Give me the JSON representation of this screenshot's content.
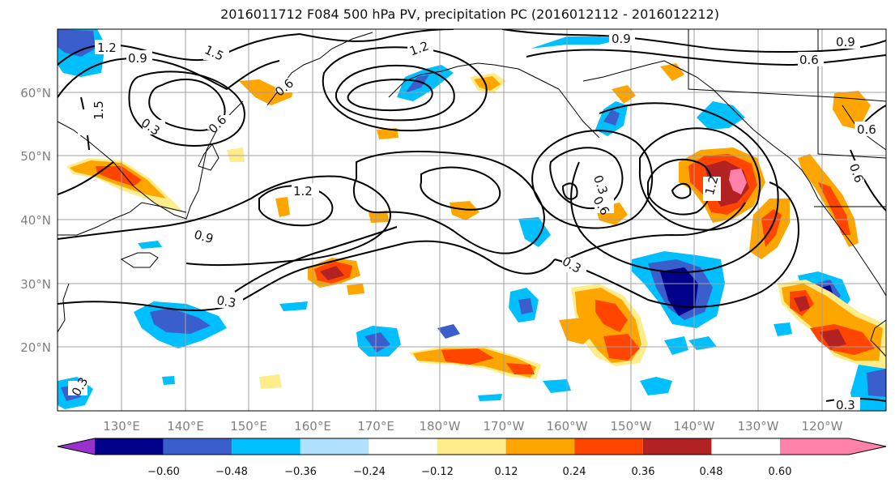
{
  "title": "2016011712 F084 500 hPa PV, precipitation PC (2016012112 - 2016012212)",
  "map": {
    "lat_labels": [
      "60°N",
      "50°N",
      "40°N",
      "30°N",
      "20°N"
    ],
    "lon_labels": [
      "130°E",
      "140°E",
      "150°E",
      "160°E",
      "170°E",
      "180°W",
      "170°W",
      "160°W",
      "150°W",
      "140°W",
      "130°W",
      "120°W"
    ],
    "contour_labels": [
      "1.2",
      "0.9",
      "1.5",
      "0.6",
      "0.3",
      "1.5",
      "1.2",
      "0.9",
      "0.6",
      "0.9",
      "0.6",
      "0.3",
      "0.9",
      "0.6",
      "1.2",
      "0.3",
      "0.6",
      "0.3",
      "1.2",
      "0.3",
      "0.6",
      "0.3"
    ]
  },
  "colorbar": {
    "ticks": [
      "−0.60",
      "−0.48",
      "−0.36",
      "−0.24",
      "−0.12",
      "0.12",
      "0.24",
      "0.36",
      "0.48",
      "0.60"
    ],
    "colors": [
      "#9932cc",
      "#00008b",
      "#3a5fcd",
      "#00bfff",
      "#b0e2ff",
      "#ffffff",
      "#ffec8b",
      "#ffa500",
      "#ff4500",
      "#b22222",
      "#ff82ab"
    ]
  }
}
